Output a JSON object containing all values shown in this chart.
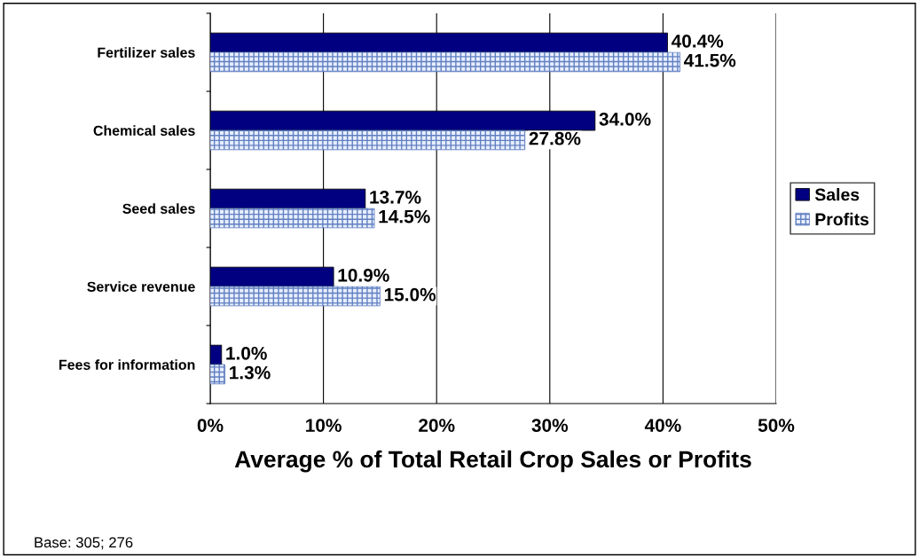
{
  "chart_data": {
    "type": "bar",
    "orientation": "horizontal",
    "categories": [
      "Fertilizer sales",
      "Chemical sales",
      "Seed sales",
      "Service revenue",
      "Fees for information"
    ],
    "series": [
      {
        "name": "Sales",
        "color": "#000080",
        "values": [
          40.4,
          34.0,
          13.7,
          10.9,
          1.0
        ],
        "value_labels": [
          "40.4%",
          "34.0%",
          "13.7%",
          "10.9%",
          "1.0%"
        ]
      },
      {
        "name": "Profits",
        "color": "#6080c0",
        "values": [
          41.5,
          27.8,
          14.5,
          15.0,
          1.3
        ],
        "value_labels": [
          "41.5%",
          "27.8%",
          "14.5%",
          "15.0%",
          "1.3%"
        ]
      }
    ],
    "xlabel": "Average % of Total Retail Crop Sales or Profits",
    "xlim": [
      0,
      50
    ],
    "xticks": [
      {
        "value": 0,
        "label": "0%"
      },
      {
        "value": 10,
        "label": "10%"
      },
      {
        "value": 20,
        "label": "20%"
      },
      {
        "value": 30,
        "label": "30%"
      },
      {
        "value": 40,
        "label": "40%"
      },
      {
        "value": 50,
        "label": "50%"
      }
    ],
    "grid": "x",
    "legend": "right",
    "annotations": [
      "Base: 305; 276"
    ]
  }
}
